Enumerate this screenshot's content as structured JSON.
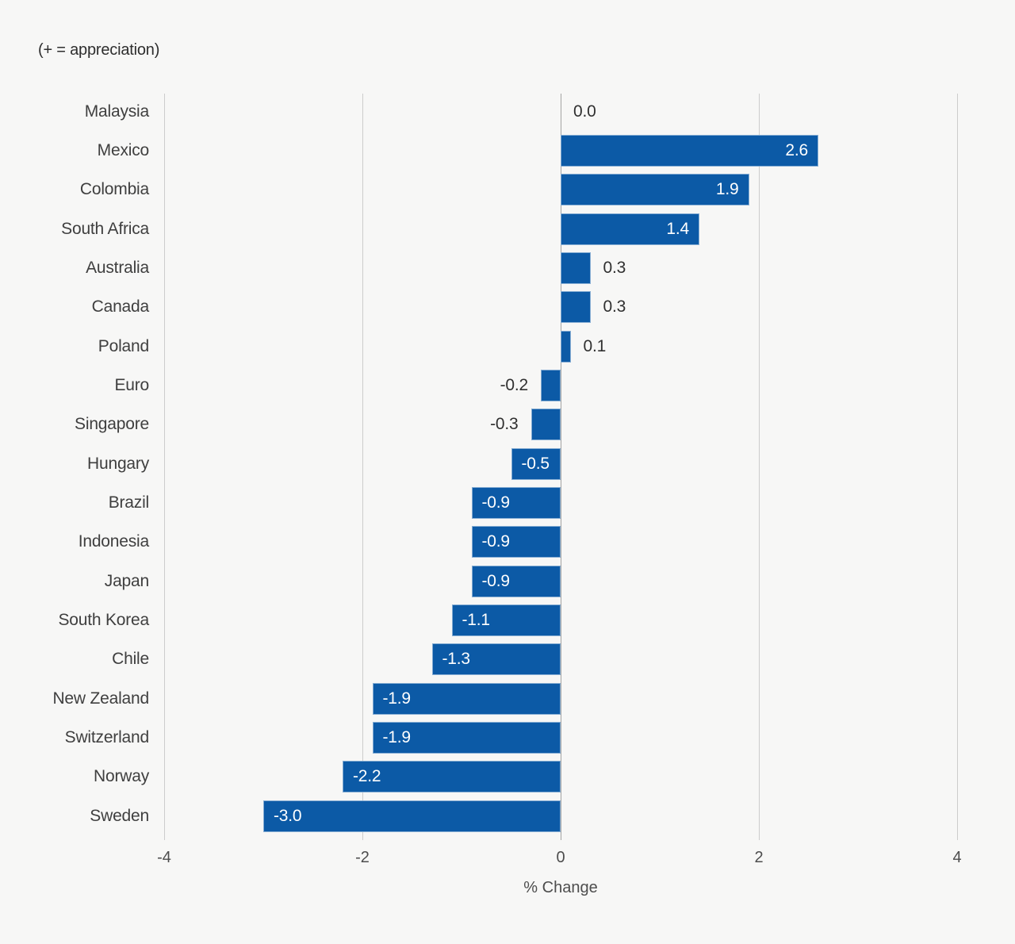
{
  "page": {
    "background": "#f7f7f6"
  },
  "chart_data": {
    "type": "bar",
    "orientation": "horizontal",
    "title": "(+ = appreciation)",
    "xlabel": "% Change",
    "xlim": [
      -4,
      4
    ],
    "x_ticks": [
      "-4",
      "-2",
      "0",
      "2",
      "4"
    ],
    "grid": "vertical-gridlines-on",
    "legend": "none",
    "categories": [
      "Malaysia",
      "Mexico",
      "Colombia",
      "South Africa",
      "Australia",
      "Canada",
      "Poland",
      "Euro",
      "Singapore",
      "Hungary",
      "Brazil",
      "Indonesia",
      "Japan",
      "South Korea",
      "Chile",
      "New Zealand",
      "Switzerland",
      "Norway",
      "Sweden"
    ],
    "values": [
      0.0,
      2.6,
      1.9,
      1.4,
      0.3,
      0.3,
      0.1,
      -0.2,
      -0.3,
      -0.5,
      -0.9,
      -0.9,
      -0.9,
      -1.1,
      -1.3,
      -1.9,
      -1.9,
      -2.2,
      -3.0
    ],
    "value_labels": [
      "0.0",
      "2.6",
      "1.9",
      "1.4",
      "0.3",
      "0.3",
      "0.1",
      "-0.2",
      "-0.3",
      "-0.5",
      "-0.9",
      "-0.9",
      "-0.9",
      "-1.1",
      "-1.3",
      "-1.9",
      "-1.9",
      "-2.2",
      "-3.0"
    ],
    "colors": {
      "bar": "#0C5AA6",
      "value_label_inside": "#ffffff",
      "value_label_outside": "#303030",
      "category_label": "#3f3f3f",
      "tick_label": "#4d4d4d",
      "gridline": "#cccccc",
      "zero_line": "#a3a3a3",
      "background": "#f7f7f6"
    }
  }
}
